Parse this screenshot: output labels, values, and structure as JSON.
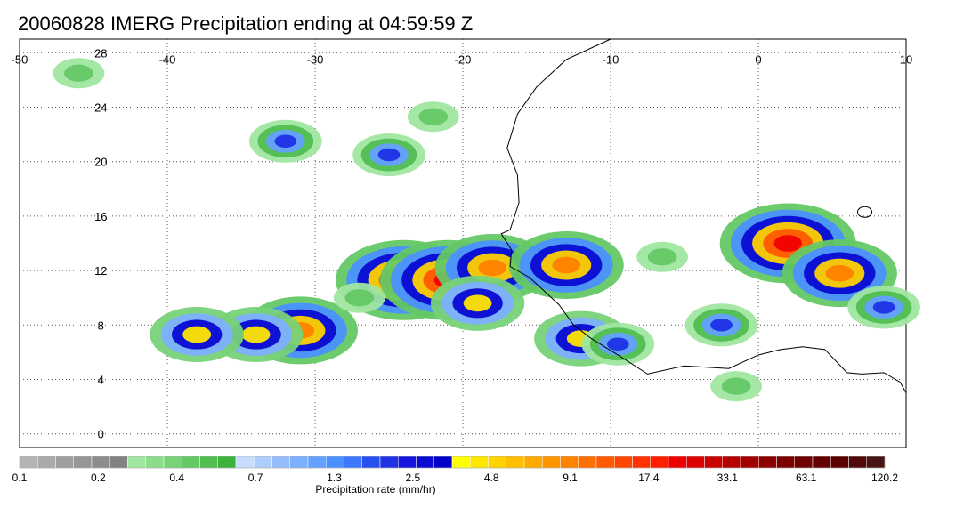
{
  "title": "20060828 IMERG Precipitation ending at 04:59:59 Z",
  "map": {
    "lon_range": [
      -50,
      10
    ],
    "lat_range": [
      -1,
      29
    ],
    "lon_ticks": [
      "-50",
      "-40",
      "-30",
      "-20",
      "-10",
      "0",
      "10"
    ],
    "lat_ticks": [
      "28",
      "24",
      "20",
      "16",
      "12",
      "8",
      "4",
      "0"
    ],
    "grid": "dotted",
    "coastline_color": "#000000"
  },
  "colorbar": {
    "label": "Precipitation rate (mm/hr)",
    "tick_labels": [
      "0.1",
      "0.2",
      "0.4",
      "0.7",
      "1.3",
      "2.5",
      "4.8",
      "9.1",
      "17.4",
      "33.1",
      "63.1",
      "120.2"
    ],
    "colors": [
      "#b4b4b4",
      "#aaaaaa",
      "#a0a0a0",
      "#969696",
      "#8c8c8c",
      "#828282",
      "#a0e6a0",
      "#8cdc8c",
      "#78d278",
      "#64c864",
      "#50be50",
      "#3cb43c",
      "#c8dcff",
      "#afcdfa",
      "#96befa",
      "#7dafff",
      "#64a0ff",
      "#4b91ff",
      "#3c78ff",
      "#2850f0",
      "#1e32e6",
      "#1414dc",
      "#0a0ad2",
      "#0000c8",
      "#ffff00",
      "#ffe600",
      "#ffd200",
      "#ffbe00",
      "#ffaa00",
      "#ff9600",
      "#ff8200",
      "#ff6e00",
      "#ff5a00",
      "#ff4600",
      "#ff3200",
      "#ff1e00",
      "#f00000",
      "#dc0000",
      "#c80000",
      "#b40000",
      "#a00000",
      "#8c0000",
      "#7d0000",
      "#6e0000",
      "#640000",
      "#5a0000",
      "#500a0a",
      "#461414"
    ]
  },
  "precip_cells": [
    {
      "lon": -24.0,
      "lat": 11.3,
      "level": 5
    },
    {
      "lon": -21.0,
      "lat": 11.3,
      "level": 5
    },
    {
      "lon": -18.0,
      "lat": 12.2,
      "level": 4
    },
    {
      "lon": -13.0,
      "lat": 12.4,
      "level": 4
    },
    {
      "lon": -31.0,
      "lat": 7.6,
      "level": 4
    },
    {
      "lon": -34.0,
      "lat": 7.3,
      "level": 3
    },
    {
      "lon": -38.0,
      "lat": 7.3,
      "level": 3
    },
    {
      "lon": 2.0,
      "lat": 14.0,
      "level": 5
    },
    {
      "lon": 5.5,
      "lat": 11.8,
      "level": 4
    },
    {
      "lon": -19.0,
      "lat": 9.6,
      "level": 3
    },
    {
      "lon": -12.0,
      "lat": 7.0,
      "level": 3
    },
    {
      "lon": -9.5,
      "lat": 6.6,
      "level": 2
    },
    {
      "lon": -25.0,
      "lat": 20.5,
      "level": 2
    },
    {
      "lon": -32.0,
      "lat": 21.5,
      "level": 2
    },
    {
      "lon": -22.0,
      "lat": 23.3,
      "level": 1
    },
    {
      "lon": -46.0,
      "lat": 26.5,
      "level": 1
    },
    {
      "lon": -27.0,
      "lat": 10.0,
      "level": 1
    },
    {
      "lon": -6.5,
      "lat": 13.0,
      "level": 1
    },
    {
      "lon": 8.5,
      "lat": 9.3,
      "level": 2
    },
    {
      "lon": -2.5,
      "lat": 8.0,
      "level": 2
    },
    {
      "lon": -1.5,
      "lat": 3.5,
      "level": 1
    }
  ]
}
